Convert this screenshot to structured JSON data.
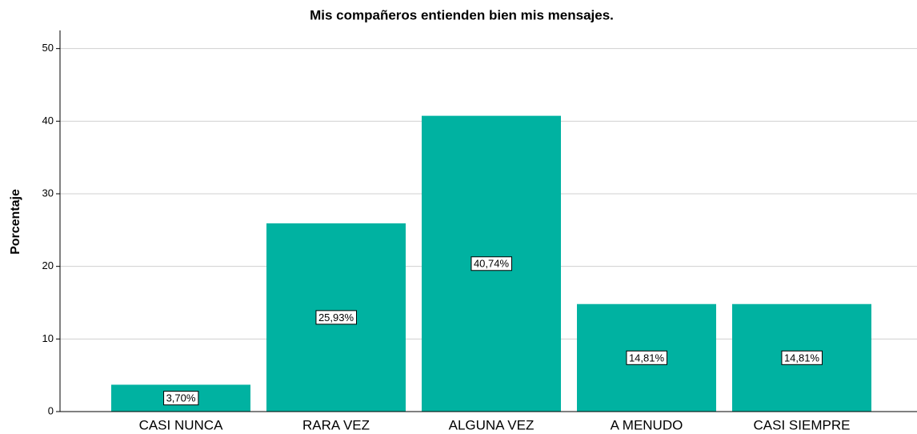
{
  "chart_data": {
    "type": "bar",
    "title": "Mis compañeros entienden bien mis mensajes.",
    "ylabel": "Porcentaje",
    "categories": [
      "CASI NUNCA",
      "RARA VEZ",
      "ALGUNA VEZ",
      "A MENUDO",
      "CASI SIEMPRE"
    ],
    "values": [
      3.7,
      25.93,
      40.74,
      14.81,
      14.81
    ],
    "value_labels": [
      "3,70%",
      "25,93%",
      "40,74%",
      "14,81%",
      "14,81%"
    ],
    "color": "#00b2a1",
    "ylim": [
      0,
      52.5
    ],
    "yticks": [
      0,
      10,
      20,
      30,
      40,
      50
    ],
    "grid": true
  }
}
